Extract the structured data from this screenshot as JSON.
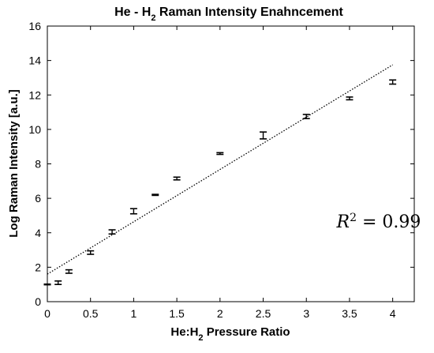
{
  "chart_data": {
    "type": "scatter",
    "title": {
      "pre": "He - H",
      "sub": "2",
      "post": " Raman Intensity Enahncement"
    },
    "xlabel": {
      "pre": "He:H",
      "sub": "2",
      "post": " Pressure Ratio"
    },
    "ylabel": "Log Raman Intensity [a.u.]",
    "xlim": [
      0,
      4.25
    ],
    "ylim": [
      0,
      16
    ],
    "xticks": [
      0,
      0.5,
      1,
      1.5,
      2,
      2.5,
      3,
      3.5,
      4
    ],
    "xtick_labels": [
      "0",
      "0.5",
      "1",
      "1.5",
      "2",
      "2.5",
      "3",
      "3.5",
      "4"
    ],
    "yticks": [
      0,
      2,
      4,
      6,
      8,
      10,
      12,
      14,
      16
    ],
    "ytick_labels": [
      "0",
      "2",
      "4",
      "6",
      "8",
      "10",
      "12",
      "14",
      "16"
    ],
    "grid": false,
    "points": [
      {
        "x": 0.0,
        "y": 1.0,
        "err": 0.02
      },
      {
        "x": 0.125,
        "y": 1.1,
        "err": 0.1
      },
      {
        "x": 0.25,
        "y": 1.75,
        "err": 0.1
      },
      {
        "x": 0.5,
        "y": 2.85,
        "err": 0.1
      },
      {
        "x": 0.75,
        "y": 4.05,
        "err": 0.12
      },
      {
        "x": 1.0,
        "y": 5.25,
        "err": 0.15
      },
      {
        "x": 1.25,
        "y": 6.2,
        "err": 0.03
      },
      {
        "x": 1.5,
        "y": 7.15,
        "err": 0.08
      },
      {
        "x": 2.0,
        "y": 8.6,
        "err": 0.05
      },
      {
        "x": 2.5,
        "y": 9.65,
        "err": 0.2
      },
      {
        "x": 3.0,
        "y": 10.75,
        "err": 0.12
      },
      {
        "x": 3.5,
        "y": 11.8,
        "err": 0.08
      },
      {
        "x": 4.0,
        "y": 12.75,
        "err": 0.12
      }
    ],
    "fit_line": {
      "x": [
        0,
        4
      ],
      "y": [
        1.6,
        13.75
      ],
      "style": "dotted"
    },
    "annotation": {
      "base": "R",
      "sup": "2",
      "rest": " = 0.99",
      "x": 3.35,
      "y": 4.3
    }
  }
}
